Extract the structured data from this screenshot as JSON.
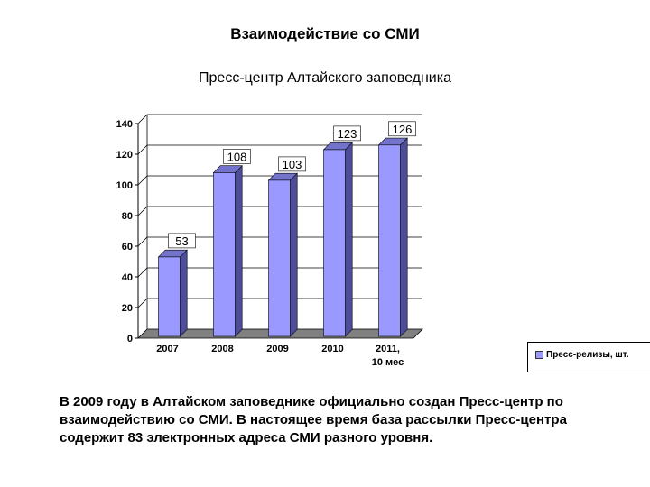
{
  "title": "Взаимодействие со СМИ",
  "subtitle": "Пресс-центр   Алтайского заповедника",
  "caption": "В 2009 году в Алтайском заповеднике официально создан Пресс-центр по взаимодействию со СМИ. В настоящее время база рассылки Пресс-центра содержит 83 электронных адреса СМИ разного уровня.",
  "colors": {
    "bar_front": "#9999ff",
    "bar_side": "#4d4d99",
    "bar_top": "#7373cc",
    "floor": "#808080"
  },
  "chart_data": {
    "type": "bar",
    "categories": [
      "2007",
      "2008",
      "2009",
      "2010",
      "2011, 10 мес"
    ],
    "series": [
      {
        "name": "Пресс-релизы, шт.",
        "values": [
          53,
          108,
          103,
          123,
          126
        ]
      }
    ],
    "ylim": [
      0,
      140
    ],
    "yticks": [
      0,
      20,
      40,
      60,
      80,
      100,
      120,
      140
    ],
    "grid": true,
    "legend": "right",
    "xlabel": "",
    "ylabel": ""
  }
}
